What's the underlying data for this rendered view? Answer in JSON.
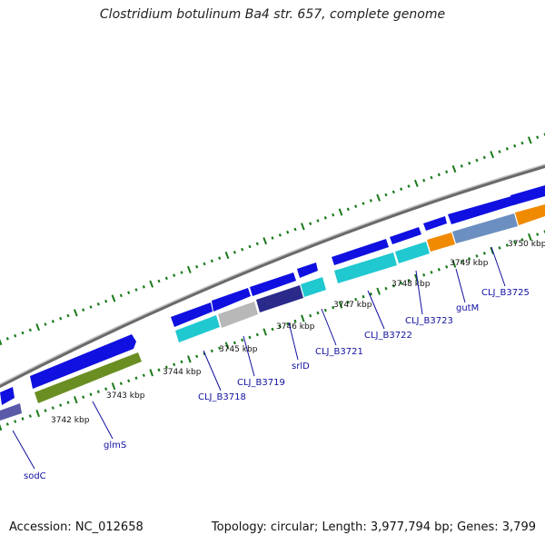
{
  "title": "Clostridium botulinum Ba4 str. 657, complete genome",
  "footer": {
    "accession": "Accession: NC_012658",
    "summary": "Topology: circular; Length: 3,977,794 bp; Genes: 3,799"
  },
  "kbp_labels": [
    "3742 kbp",
    "3743 kbp",
    "3744 kbp",
    "3745 kbp",
    "3746 kbp",
    "3747 kbp",
    "3748 kbp",
    "3749 kbp",
    "3750 kbp"
  ],
  "gene_labels": [
    "sodC",
    "glmS",
    "CLJ_B3718",
    "CLJ_B3719",
    "srlD",
    "CLJ_B3721",
    "CLJ_B3722",
    "CLJ_B3723",
    "gutM",
    "CLJ_B3725"
  ],
  "colors": {
    "forward_strand": "#1010e0",
    "cds_cyan": "#20c8d0",
    "cds_olive": "#6b8e23",
    "cds_grey": "#b8b8b8",
    "cds_navy": "#2a2a8a",
    "cds_purple": "#6060b0",
    "cds_orange": "#f08a00",
    "cds_steel": "#6a8fc0",
    "backbone": "#888888",
    "ticks": "#1a7a1a",
    "label_line": "#1010a0"
  }
}
